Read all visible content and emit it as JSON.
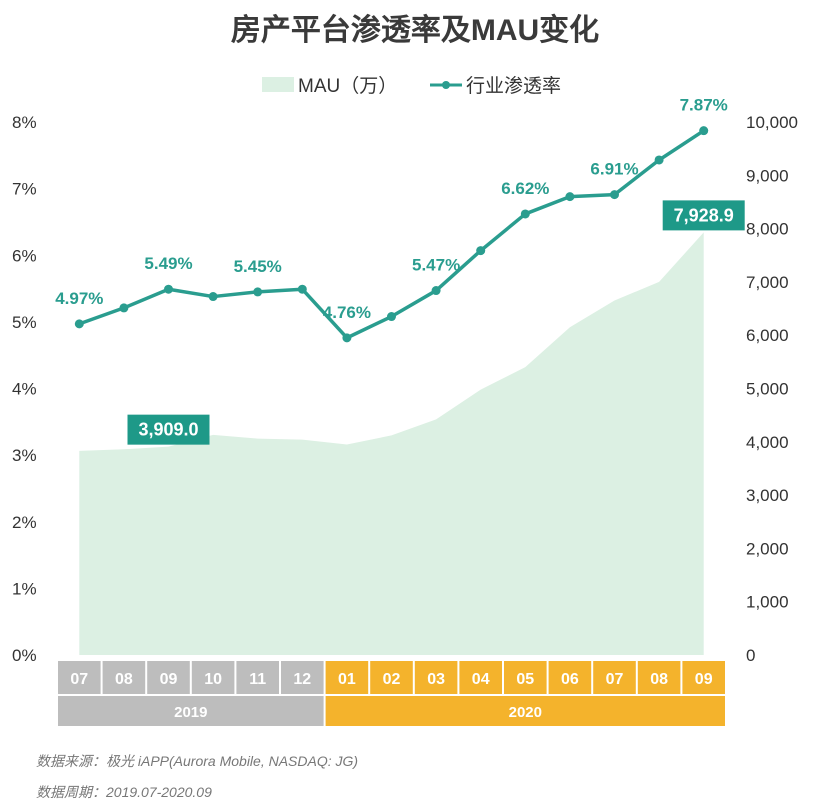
{
  "title": "房产平台渗透率及MAU变化",
  "colors": {
    "area": "#dcf0e3",
    "line": "#2a9d8f",
    "label_box": "#1e9988",
    "year2019": "#bdbdbd",
    "year2020": "#f4b32c"
  },
  "chart_data": {
    "type": "area+line",
    "title": "房产平台渗透率及MAU变化",
    "legend": [
      "MAU（万）",
      "行业渗透率"
    ],
    "categories": [
      "07",
      "08",
      "09",
      "10",
      "11",
      "12",
      "01",
      "02",
      "03",
      "04",
      "05",
      "06",
      "07",
      "08",
      "09"
    ],
    "years": [
      {
        "label": "2019",
        "span": 6
      },
      {
        "label": "2020",
        "span": 9
      }
    ],
    "series": [
      {
        "name": "MAU（万）",
        "type": "area",
        "axis": "right",
        "values": [
          3830,
          3860,
          3909.0,
          4130,
          4060,
          4040,
          3950,
          4120,
          4420,
          4980,
          5400,
          6150,
          6650,
          7000,
          7928.9
        ]
      },
      {
        "name": "行业渗透率",
        "type": "line",
        "axis": "left",
        "values": [
          4.97,
          5.21,
          5.49,
          5.38,
          5.45,
          5.49,
          4.76,
          5.08,
          5.47,
          6.07,
          6.62,
          6.88,
          6.91,
          7.43,
          7.87
        ]
      }
    ],
    "percent_labels": [
      {
        "index": 0,
        "text": "4.97%"
      },
      {
        "index": 2,
        "text": "5.49%"
      },
      {
        "index": 4,
        "text": "5.45%"
      },
      {
        "index": 6,
        "text": "4.76%"
      },
      {
        "index": 8,
        "text": "5.47%"
      },
      {
        "index": 10,
        "text": "6.62%"
      },
      {
        "index": 12,
        "text": "6.91%"
      },
      {
        "index": 14,
        "text": "7.87%"
      }
    ],
    "mau_labels": [
      {
        "index": 2,
        "text": "3,909.0"
      },
      {
        "index": 14,
        "text": "7,928.9"
      }
    ],
    "left_axis": {
      "min": 0,
      "max": 8,
      "ticks": [
        "0%",
        "1%",
        "2%",
        "3%",
        "4%",
        "5%",
        "6%",
        "7%",
        "8%"
      ]
    },
    "right_axis": {
      "min": 0,
      "max": 10000,
      "ticks": [
        "0",
        "1,000",
        "2,000",
        "3,000",
        "4,000",
        "5,000",
        "6,000",
        "7,000",
        "8,000",
        "9,000",
        "10,000"
      ]
    }
  },
  "footer": {
    "source": "数据来源：极光 iAPP(Aurora Mobile, NASDAQ: JG)",
    "period": "数据周期：2019.07-2020.09"
  }
}
